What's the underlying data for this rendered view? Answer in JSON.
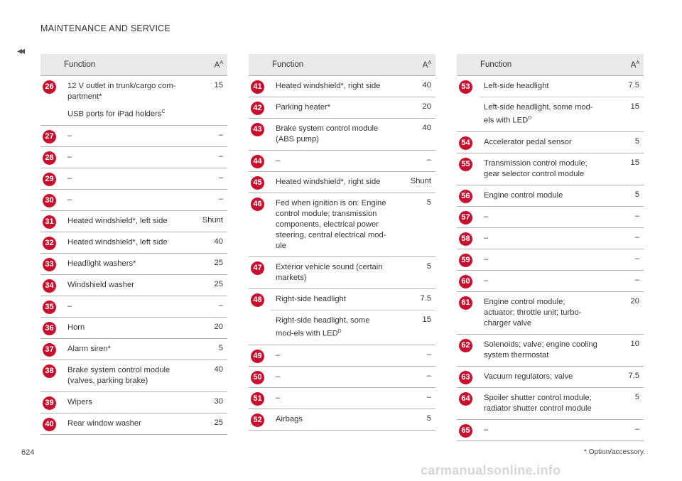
{
  "header": {
    "title": "MAINTENANCE AND SERVICE",
    "back_glyph": "◂◂"
  },
  "table_headers": {
    "function": "Function",
    "amp": "A",
    "amp_sup": "A"
  },
  "columns": [
    {
      "rows": [
        {
          "num": "26",
          "func": "12 V outlet in trunk/cargo com-partment*",
          "sub": "USB ports for iPad holders",
          "sub_sup": "C",
          "amp": "15"
        },
        {
          "num": "27",
          "func": "–",
          "amp": "–"
        },
        {
          "num": "28",
          "func": "–",
          "amp": "–"
        },
        {
          "num": "29",
          "func": "–",
          "amp": "–"
        },
        {
          "num": "30",
          "func": "–",
          "amp": "–"
        },
        {
          "num": "31",
          "func": "Heated windshield*, left side",
          "amp": "Shunt"
        },
        {
          "num": "32",
          "func": "Heated windshield*, left side",
          "amp": "40"
        },
        {
          "num": "33",
          "func": "Headlight washers*",
          "amp": "25"
        },
        {
          "num": "34",
          "func": "Windshield washer",
          "amp": "25"
        },
        {
          "num": "35",
          "func": "–",
          "amp": "–"
        },
        {
          "num": "36",
          "func": "Horn",
          "amp": "20"
        },
        {
          "num": "37",
          "func": "Alarm siren*",
          "amp": "5"
        },
        {
          "num": "38",
          "func": "Brake system control module (valves, parking brake)",
          "amp": "40"
        },
        {
          "num": "39",
          "func": "Wipers",
          "amp": "30"
        },
        {
          "num": "40",
          "func": "Rear window washer",
          "amp": "25"
        }
      ]
    },
    {
      "rows": [
        {
          "num": "41",
          "func": "Heated windshield*, right side",
          "amp": "40"
        },
        {
          "num": "42",
          "func": "Parking heater*",
          "amp": "20"
        },
        {
          "num": "43",
          "func": "Brake system control module (ABS pump)",
          "amp": "40"
        },
        {
          "num": "44",
          "func": "–",
          "amp": "–"
        },
        {
          "num": "45",
          "func": "Heated windshield*, right side",
          "amp": "Shunt"
        },
        {
          "num": "46",
          "func": "Fed when ignition is on: Engine control module; transmission components, electrical power steering, central electrical mod-ule",
          "amp": "5"
        },
        {
          "num": "47",
          "func": "Exterior vehicle sound (certain markets)",
          "amp": "5"
        },
        {
          "num": "48",
          "func": "Right-side headlight",
          "amp": "7.5",
          "extra_func": "Right-side headlight, some mod-els with LED",
          "extra_sup": "D",
          "extra_amp": "15"
        },
        {
          "num": "49",
          "func": "–",
          "amp": "–"
        },
        {
          "num": "50",
          "func": "–",
          "amp": "–"
        },
        {
          "num": "51",
          "func": "–",
          "amp": "–"
        },
        {
          "num": "52",
          "func": "Airbags",
          "amp": "5"
        }
      ]
    },
    {
      "rows": [
        {
          "num": "53",
          "func": "Left-side headlight",
          "amp": "7.5",
          "extra_func": "Left-side headlight, some mod-els with LED",
          "extra_sup": "D",
          "extra_amp": "15"
        },
        {
          "num": "54",
          "func": "Accelerator pedal sensor",
          "amp": "5"
        },
        {
          "num": "55",
          "func": "Transmission control module; gear selector control module",
          "amp": "15"
        },
        {
          "num": "56",
          "func": "Engine control module",
          "amp": "5"
        },
        {
          "num": "57",
          "func": "–",
          "amp": "–"
        },
        {
          "num": "58",
          "func": "–",
          "amp": "–"
        },
        {
          "num": "59",
          "func": "–",
          "amp": "–"
        },
        {
          "num": "60",
          "func": "–",
          "amp": "–"
        },
        {
          "num": "61",
          "func": "Engine control module; actuator; throttle unit; turbo-charger valve",
          "amp": "20"
        },
        {
          "num": "62",
          "func": "Solenoids; valve; engine cooling system thermostat",
          "amp": "10"
        },
        {
          "num": "63",
          "func": "Vacuum regulators; valve",
          "amp": "7.5"
        },
        {
          "num": "64",
          "func": "Spoiler shutter control module; radiator shutter control module",
          "amp": "5"
        },
        {
          "num": "65",
          "func": "–",
          "amp": "–"
        }
      ]
    }
  ],
  "footer": {
    "page_number": "624",
    "note": "* Option/accessory."
  },
  "watermark": "carmanualsonline.info"
}
